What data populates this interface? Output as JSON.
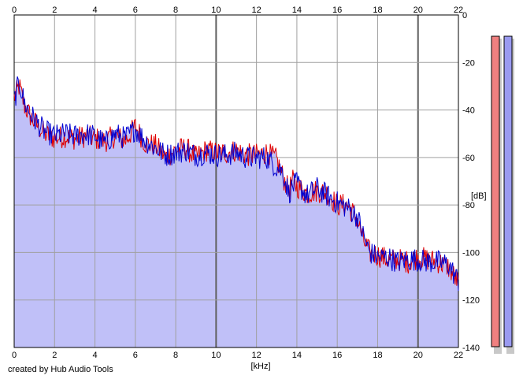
{
  "credit": "created by Hub Audio Tools",
  "chart_data": {
    "type": "line",
    "xlabel": "[kHz]",
    "ylabel": "[dB]",
    "xlim": [
      0,
      22
    ],
    "ylim": [
      -140,
      0
    ],
    "x_ticks": [
      0,
      2,
      4,
      6,
      8,
      10,
      12,
      14,
      16,
      18,
      20,
      22
    ],
    "y_ticks": [
      0,
      -20,
      -40,
      -60,
      -80,
      -100,
      -120,
      -140
    ],
    "y_tick_labels": [
      "0",
      "-20",
      "-40",
      "-60",
      "-80",
      "-100",
      "-120",
      "-140"
    ],
    "grid": true,
    "colors": {
      "left": "#e00000",
      "right": "#0000d0",
      "fill": "#c0c0f8",
      "meter_left": "#f08080",
      "meter_right": "#9a9af0"
    },
    "x": [
      0,
      0.25,
      0.5,
      0.75,
      1,
      1.5,
      2,
      2.5,
      3,
      3.5,
      4,
      4.5,
      5,
      5.5,
      6,
      6.5,
      7,
      7.5,
      8,
      8.5,
      9,
      9.5,
      10,
      10.5,
      11,
      11.5,
      12,
      12.5,
      13,
      13.3,
      13.6,
      13.8,
      14,
      14.5,
      15,
      15.5,
      16,
      16.5,
      17,
      17.3,
      17.6,
      18,
      18.5,
      19,
      19.5,
      20,
      20.5,
      21,
      21.5,
      22
    ],
    "series": [
      {
        "channel": "left",
        "values": [
          -35,
          -30,
          -38,
          -42,
          -45,
          -50,
          -52,
          -51,
          -52,
          -51,
          -52,
          -53,
          -51,
          -53,
          -47,
          -54,
          -55,
          -60,
          -57,
          -56,
          -60,
          -57,
          -58,
          -58,
          -57,
          -59,
          -59,
          -58,
          -61,
          -68,
          -74,
          -70,
          -72,
          -75,
          -74,
          -75,
          -80,
          -80,
          -86,
          -95,
          -100,
          -101,
          -103,
          -103,
          -104,
          -102,
          -103,
          -104,
          -106,
          -113
        ]
      },
      {
        "channel": "right",
        "values": [
          -36,
          -28,
          -37,
          -41,
          -44,
          -49,
          -51,
          -50,
          -51,
          -50,
          -51,
          -54,
          -50,
          -52,
          -48,
          -53,
          -56,
          -59,
          -58,
          -57,
          -59,
          -58,
          -59,
          -59,
          -58,
          -60,
          -60,
          -60,
          -64,
          -66,
          -75,
          -72,
          -71,
          -76,
          -73,
          -76,
          -79,
          -81,
          -85,
          -93,
          -100,
          -102,
          -102,
          -104,
          -103,
          -103,
          -104,
          -104,
          -105,
          -112
        ]
      }
    ]
  }
}
